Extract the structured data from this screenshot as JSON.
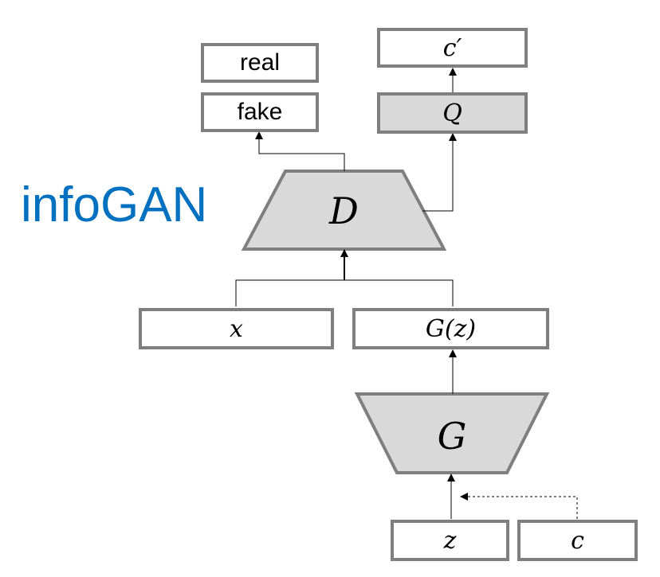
{
  "title": "infoGAN",
  "colors": {
    "title": "#0070c0",
    "border": "#7f7f7f",
    "fill": "#d9d9d9"
  },
  "discriminator": {
    "label": "D"
  },
  "generator": {
    "label": "G"
  },
  "outputs": {
    "real": "real",
    "fake": "fake",
    "q": "Q",
    "c_prime": "c′"
  },
  "inputs": {
    "x": "x",
    "gz": "G(z)",
    "z": "z",
    "c": "c"
  }
}
